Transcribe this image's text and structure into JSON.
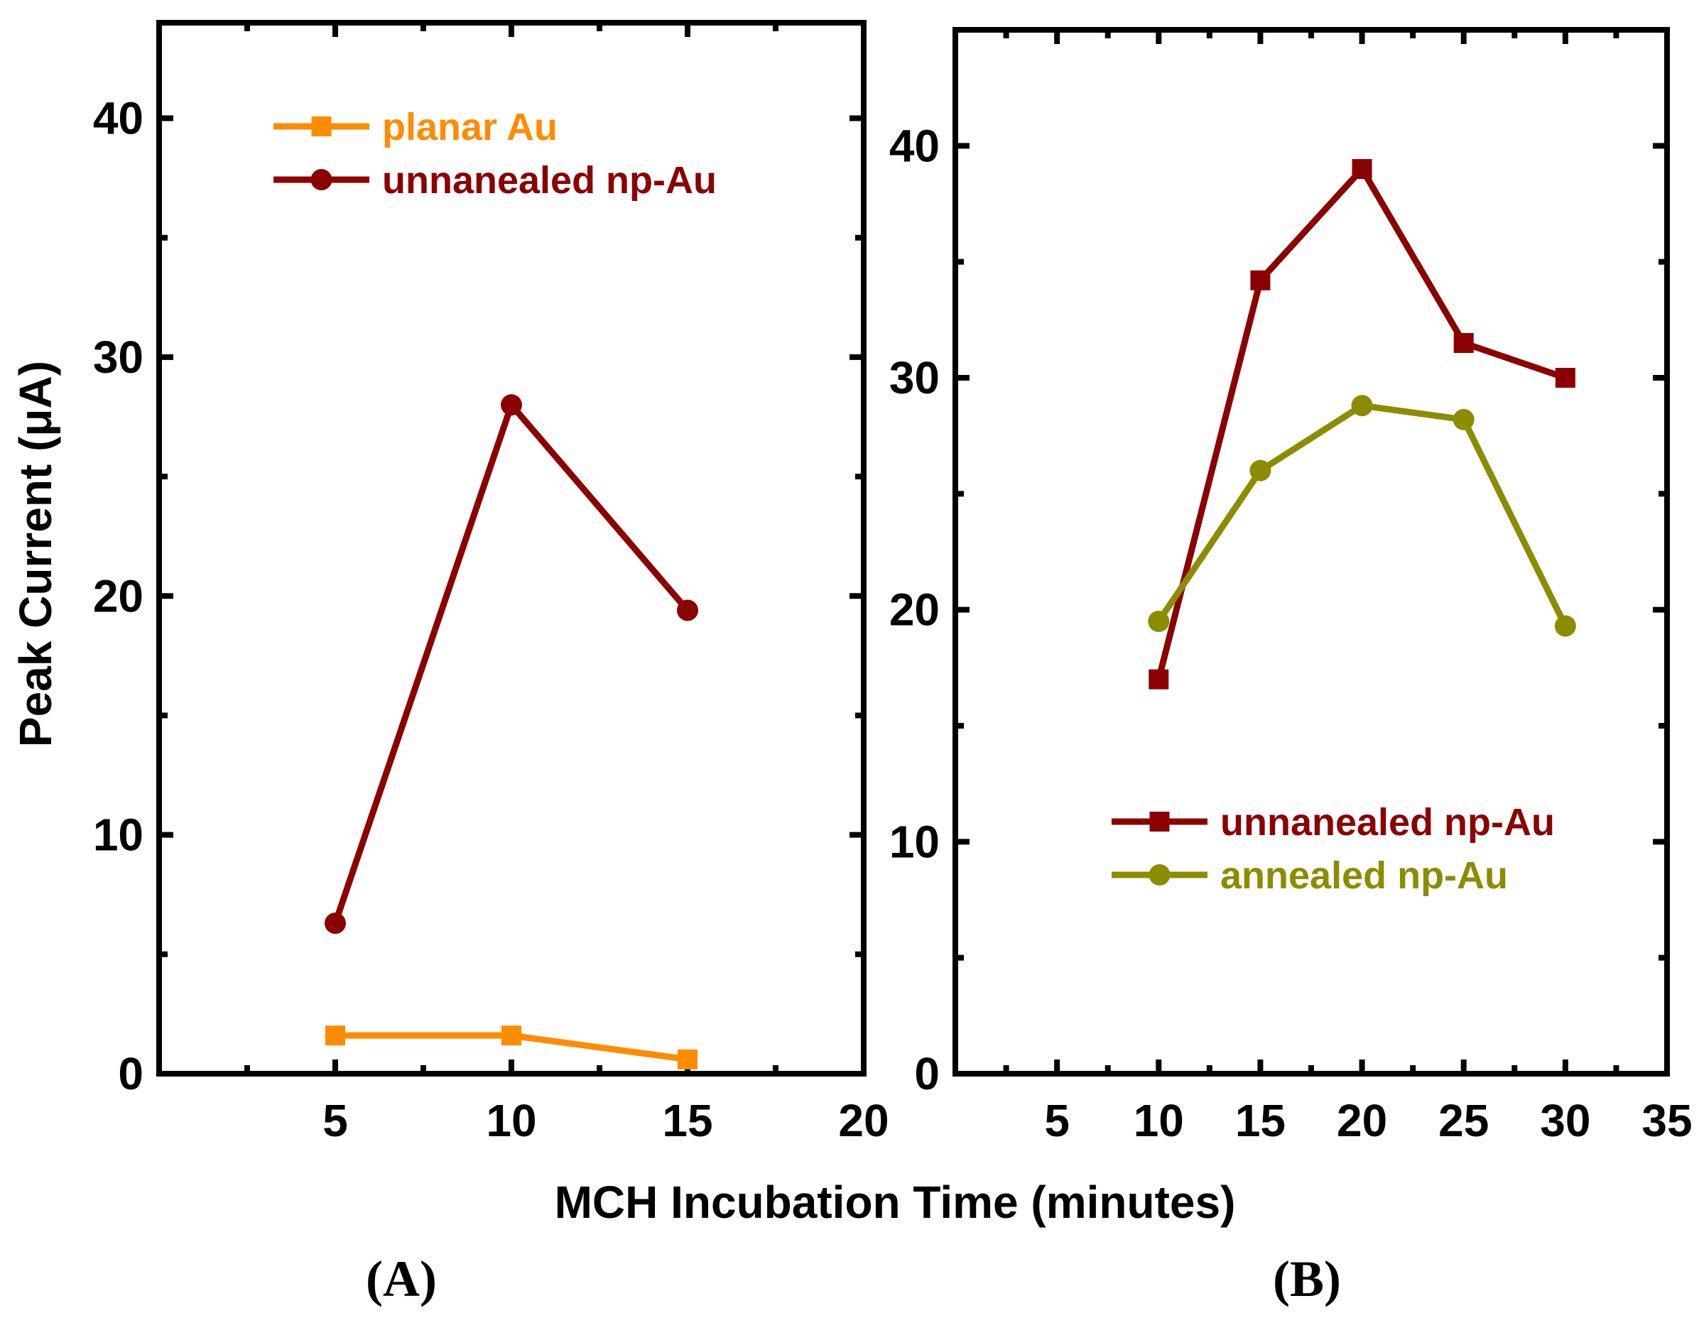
{
  "xlabel": "MCH Incubation Time (minutes)",
  "ylabel": "Peak Current (μA)",
  "colors": {
    "planar": "#ff8c00",
    "unannealed": "#8b0000",
    "annealed": "#8c8c00",
    "axis": "#000000"
  },
  "chart_data": [
    {
      "id": "A",
      "type": "line",
      "panel_label": "(A)",
      "xlim": [
        0,
        20
      ],
      "ylim": [
        0,
        44
      ],
      "xticks": [
        5,
        10,
        15,
        20
      ],
      "yticks": [
        0,
        10,
        20,
        30,
        40
      ],
      "legend_position": "top-left",
      "series": [
        {
          "name": "planar Au",
          "marker": "square",
          "color": "#ff8c00",
          "x": [
            5,
            10,
            15
          ],
          "y": [
            1.6,
            1.6,
            0.6
          ]
        },
        {
          "name": "unnanealed np-Au",
          "marker": "circle",
          "color": "#8b0000",
          "x": [
            5,
            10,
            15
          ],
          "y": [
            6.3,
            28.0,
            19.4
          ]
        }
      ]
    },
    {
      "id": "B",
      "type": "line",
      "panel_label": "(B)",
      "xlim": [
        0,
        35
      ],
      "ylim": [
        0,
        45
      ],
      "xticks": [
        5,
        10,
        15,
        20,
        25,
        30,
        35
      ],
      "yticks": [
        0,
        10,
        20,
        30,
        40
      ],
      "legend_position": "bottom-right",
      "series": [
        {
          "name": "unnanealed np-Au",
          "marker": "square",
          "color": "#8b0000",
          "x": [
            10,
            15,
            20,
            25,
            30
          ],
          "y": [
            17.0,
            34.2,
            39.0,
            31.5,
            30.0
          ]
        },
        {
          "name": "annealed np-Au",
          "marker": "circle",
          "color": "#8c8c00",
          "x": [
            10,
            15,
            20,
            25,
            30
          ],
          "y": [
            19.5,
            26.0,
            28.8,
            28.2,
            19.3
          ]
        }
      ]
    }
  ]
}
